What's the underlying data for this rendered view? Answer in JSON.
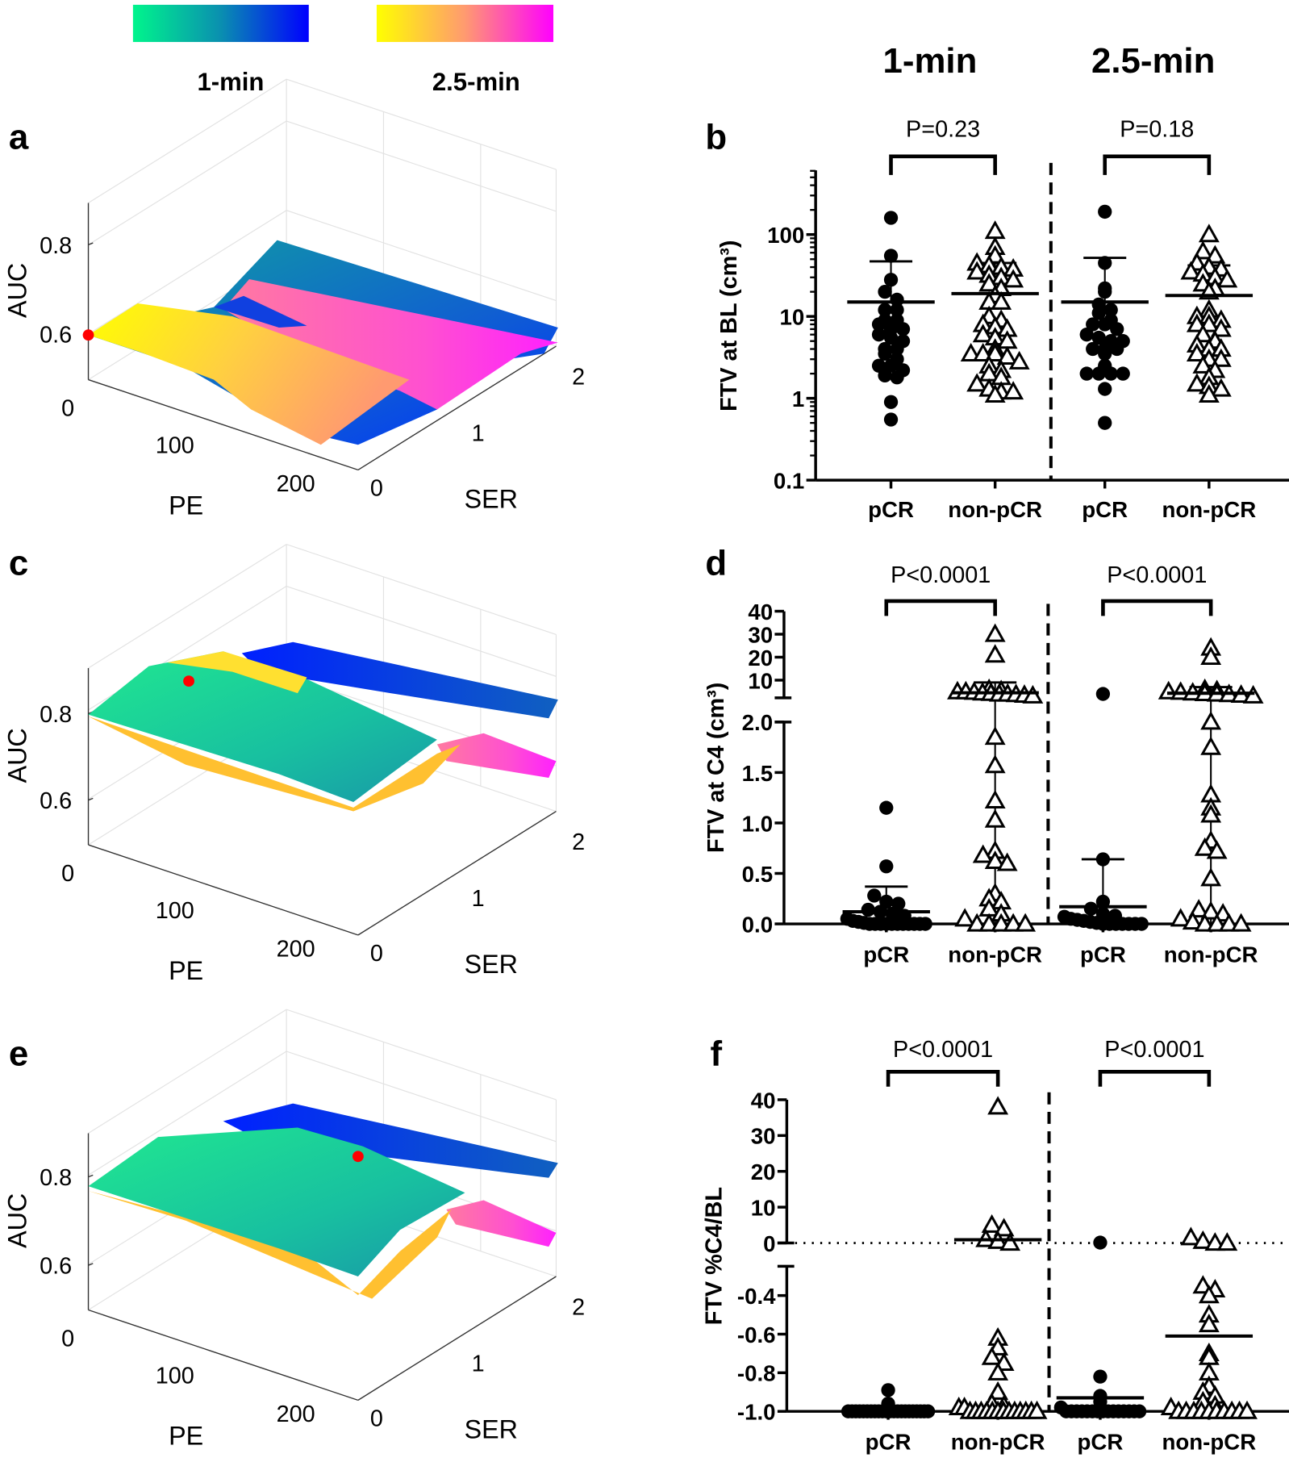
{
  "colorbars": [
    {
      "label": "1-min",
      "colors": [
        "#00f58c",
        "#0a8fb0",
        "#0000ff"
      ]
    },
    {
      "label": "2.5-min",
      "colors": [
        "#ffff00",
        "#ff9a70",
        "#ff00ff"
      ]
    }
  ],
  "column_headers": [
    "1-min",
    "2.5-min"
  ],
  "surface_panels": [
    {
      "letter": "a",
      "zlabel": "AUC",
      "xlabel": "PE",
      "ylabel": "SER",
      "z_ticks": [
        "0.8",
        "0.6"
      ],
      "pe_ticks": [
        "0",
        "100",
        "200"
      ],
      "ser_ticks": [
        "0",
        "1",
        "2"
      ]
    },
    {
      "letter": "c",
      "zlabel": "AUC",
      "xlabel": "PE",
      "ylabel": "SER",
      "z_ticks": [
        "0.8",
        "0.6"
      ],
      "pe_ticks": [
        "0",
        "100",
        "200"
      ],
      "ser_ticks": [
        "0",
        "1",
        "2"
      ]
    },
    {
      "letter": "e",
      "zlabel": "AUC",
      "xlabel": "PE",
      "ylabel": "SER",
      "z_ticks": [
        "0.8",
        "0.6"
      ],
      "pe_ticks": [
        "0",
        "100",
        "200"
      ],
      "ser_ticks": [
        "0",
        "1",
        "2"
      ]
    }
  ],
  "chart_data": [
    {
      "letter": "b",
      "type": "scatter",
      "ylabel": "FTV at BL (cm³)",
      "yscale": "log",
      "ylim": [
        0.1,
        600
      ],
      "y_ticks": [
        "0.1",
        "1",
        "10",
        "100"
      ],
      "categories": [
        "pCR",
        "non-pCR",
        "pCR",
        "non-pCR"
      ],
      "pvalues": [
        "P=0.23",
        "P=0.18"
      ],
      "groups": [
        {
          "name": "pCR 1-min",
          "marker": "circle",
          "mean": 15,
          "sd_upper": 47,
          "values": [
            160,
            55,
            28,
            20,
            16,
            12,
            12,
            9,
            9,
            8,
            7,
            7,
            6,
            5.5,
            5,
            4,
            4,
            3.5,
            3,
            2.5,
            2.5,
            2.2,
            1.9,
            1.8,
            0.9,
            0.55
          ]
        },
        {
          "name": "non-pCR 1-min",
          "marker": "triangle",
          "mean": 19,
          "sd_upper": 45,
          "values": [
            110,
            70,
            55,
            45,
            42,
            40,
            38,
            35,
            32,
            30,
            28,
            25,
            22,
            18,
            15,
            15,
            10,
            9,
            8,
            7.5,
            7,
            6,
            5.5,
            5,
            4,
            3.5,
            3.5,
            3.5,
            3.2,
            2.8,
            2.5,
            2.2,
            2,
            1.8,
            1.5,
            1.3,
            1.2,
            1.2,
            1.1
          ]
        },
        {
          "name": "pCR 2.5-min",
          "marker": "circle",
          "mean": 15,
          "sd_upper": 52,
          "values": [
            190,
            45,
            22,
            20,
            14,
            12,
            11,
            9,
            8,
            8,
            7,
            6,
            5.5,
            5,
            5,
            4,
            4,
            4,
            3.5,
            2.5,
            2,
            2,
            2,
            2,
            1.3,
            0.5
          ]
        },
        {
          "name": "non-pCR 2.5-min",
          "marker": "triangle",
          "mean": 18,
          "sd_upper": 42,
          "values": [
            100,
            62,
            55,
            45,
            40,
            38,
            35,
            33,
            30,
            28,
            25,
            22,
            20,
            12,
            10,
            10,
            9,
            8,
            8,
            7,
            6,
            5,
            4.5,
            4,
            4,
            3.5,
            3,
            3,
            2.5,
            2.2,
            1.8,
            1.5,
            1.4,
            1.3,
            1.1
          ]
        }
      ]
    },
    {
      "letter": "d",
      "type": "scatter",
      "ylabel": "FTV at C4 (cm³)",
      "yscale": "broken-linear",
      "ylim_lower": [
        0,
        2.0
      ],
      "ylim_upper": [
        2.3,
        40
      ],
      "y_ticks_lower": [
        "0.0",
        "0.5",
        "1.0",
        "1.5",
        "2.0"
      ],
      "y_ticks_upper": [
        "10",
        "20",
        "30",
        "40"
      ],
      "categories": [
        "pCR",
        "non-pCR",
        "pCR",
        "non-pCR"
      ],
      "pvalues": [
        "P<0.0001",
        "P<0.0001"
      ],
      "groups": [
        {
          "name": "pCR 1-min",
          "marker": "circle",
          "mean": 0.12,
          "sd_upper": 0.37,
          "values": [
            1.15,
            0.57,
            0.28,
            0.22,
            0.2,
            0.14,
            0.12,
            0.1,
            0.08,
            0.05,
            0.03,
            0.02,
            0.01,
            0,
            0,
            0,
            0,
            0,
            0,
            0,
            0,
            0,
            0,
            0
          ]
        },
        {
          "name": "non-pCR 1-min",
          "marker": "triangle",
          "mean": 4.5,
          "sd_upper": 9,
          "sd_lower": 0,
          "values": [
            30,
            21,
            6,
            5.5,
            5,
            5,
            4.8,
            4.5,
            4.3,
            4,
            4,
            3.8,
            3.5,
            3.2,
            1.85,
            1.57,
            1.22,
            1.03,
            0.72,
            0.68,
            0.62,
            0.6,
            0.3,
            0.25,
            0.22,
            0.15,
            0.1,
            0.05,
            0,
            0,
            0,
            0,
            0
          ]
        },
        {
          "name": "pCR 2.5-min",
          "marker": "circle",
          "mean": 0.17,
          "sd_upper": 0.64,
          "values": [
            4,
            0.64,
            0.22,
            0.15,
            0.1,
            0.08,
            0.07,
            0.05,
            0.04,
            0.03,
            0.02,
            0.01,
            0,
            0,
            0,
            0,
            0,
            0,
            0
          ]
        },
        {
          "name": "non-pCR 2.5-min",
          "marker": "triangle",
          "mean": 4.3,
          "sd_upper": 7,
          "sd_lower": 0,
          "values": [
            24,
            20,
            6,
            5.5,
            5,
            4.8,
            4.5,
            4.2,
            4,
            3.8,
            3.5,
            3.2,
            2.0,
            1.75,
            1.28,
            1.15,
            1.08,
            0.82,
            0.75,
            0.72,
            0.45,
            0.14,
            0.12,
            0.1,
            0.05,
            0.02,
            0,
            0,
            0,
            0
          ]
        }
      ]
    },
    {
      "letter": "f",
      "type": "scatter",
      "ylabel": "FTV %C4/BL",
      "yscale": "broken-linear",
      "ylim_lower": [
        -1.0,
        -0.25
      ],
      "ylim_upper": [
        0,
        40
      ],
      "y_ticks_lower": [
        "-1.0",
        "-0.8",
        "-0.6",
        "-0.4"
      ],
      "y_ticks_upper": [
        "0",
        "10",
        "20",
        "30",
        "40"
      ],
      "reference_line": 0,
      "categories": [
        "pCR",
        "non-pCR",
        "pCR",
        "non-pCR"
      ],
      "pvalues": [
        "P<0.0001",
        "P<0.0001"
      ],
      "groups": [
        {
          "name": "pCR 1-min",
          "marker": "circle",
          "mean": -0.99,
          "values": [
            -0.89,
            -0.96,
            -1,
            -1,
            -1,
            -1,
            -1,
            -1,
            -1,
            -1,
            -1,
            -1,
            -1,
            -1,
            -1,
            -1,
            -1,
            -1,
            -1,
            -1,
            -1,
            -1,
            -1,
            -1
          ]
        },
        {
          "name": "non-pCR 1-min",
          "marker": "triangle",
          "mean": 0.9,
          "values": [
            38,
            5,
            4,
            1,
            0.5,
            0,
            -0.62,
            -0.67,
            -0.72,
            -0.75,
            -0.8,
            -0.9,
            -0.96,
            -0.97,
            -0.98,
            -0.98,
            -1,
            -1,
            -1,
            -1,
            -1,
            -1,
            -1,
            -1,
            -1,
            -1,
            -1,
            -1,
            -1
          ]
        },
        {
          "name": "pCR 2.5-min",
          "marker": "circle",
          "mean": -0.93,
          "values": [
            0.1,
            -0.82,
            -0.92,
            -0.95,
            -0.98,
            -1,
            -1,
            -1,
            -1,
            -1,
            -1,
            -1,
            -1,
            -1,
            -1,
            -1,
            -1,
            -1,
            -1,
            -1
          ]
        },
        {
          "name": "non-pCR 2.5-min",
          "marker": "triangle",
          "mean": -0.61,
          "values": [
            1.5,
            0.5,
            0,
            0,
            -0.35,
            -0.37,
            -0.4,
            -0.5,
            -0.55,
            -0.7,
            -0.72,
            -0.8,
            -0.87,
            -0.9,
            -0.92,
            -0.95,
            -0.97,
            -0.98,
            -1,
            -1,
            -1,
            -1,
            -1,
            -1,
            -1,
            -1,
            -1,
            -1
          ]
        }
      ]
    }
  ]
}
